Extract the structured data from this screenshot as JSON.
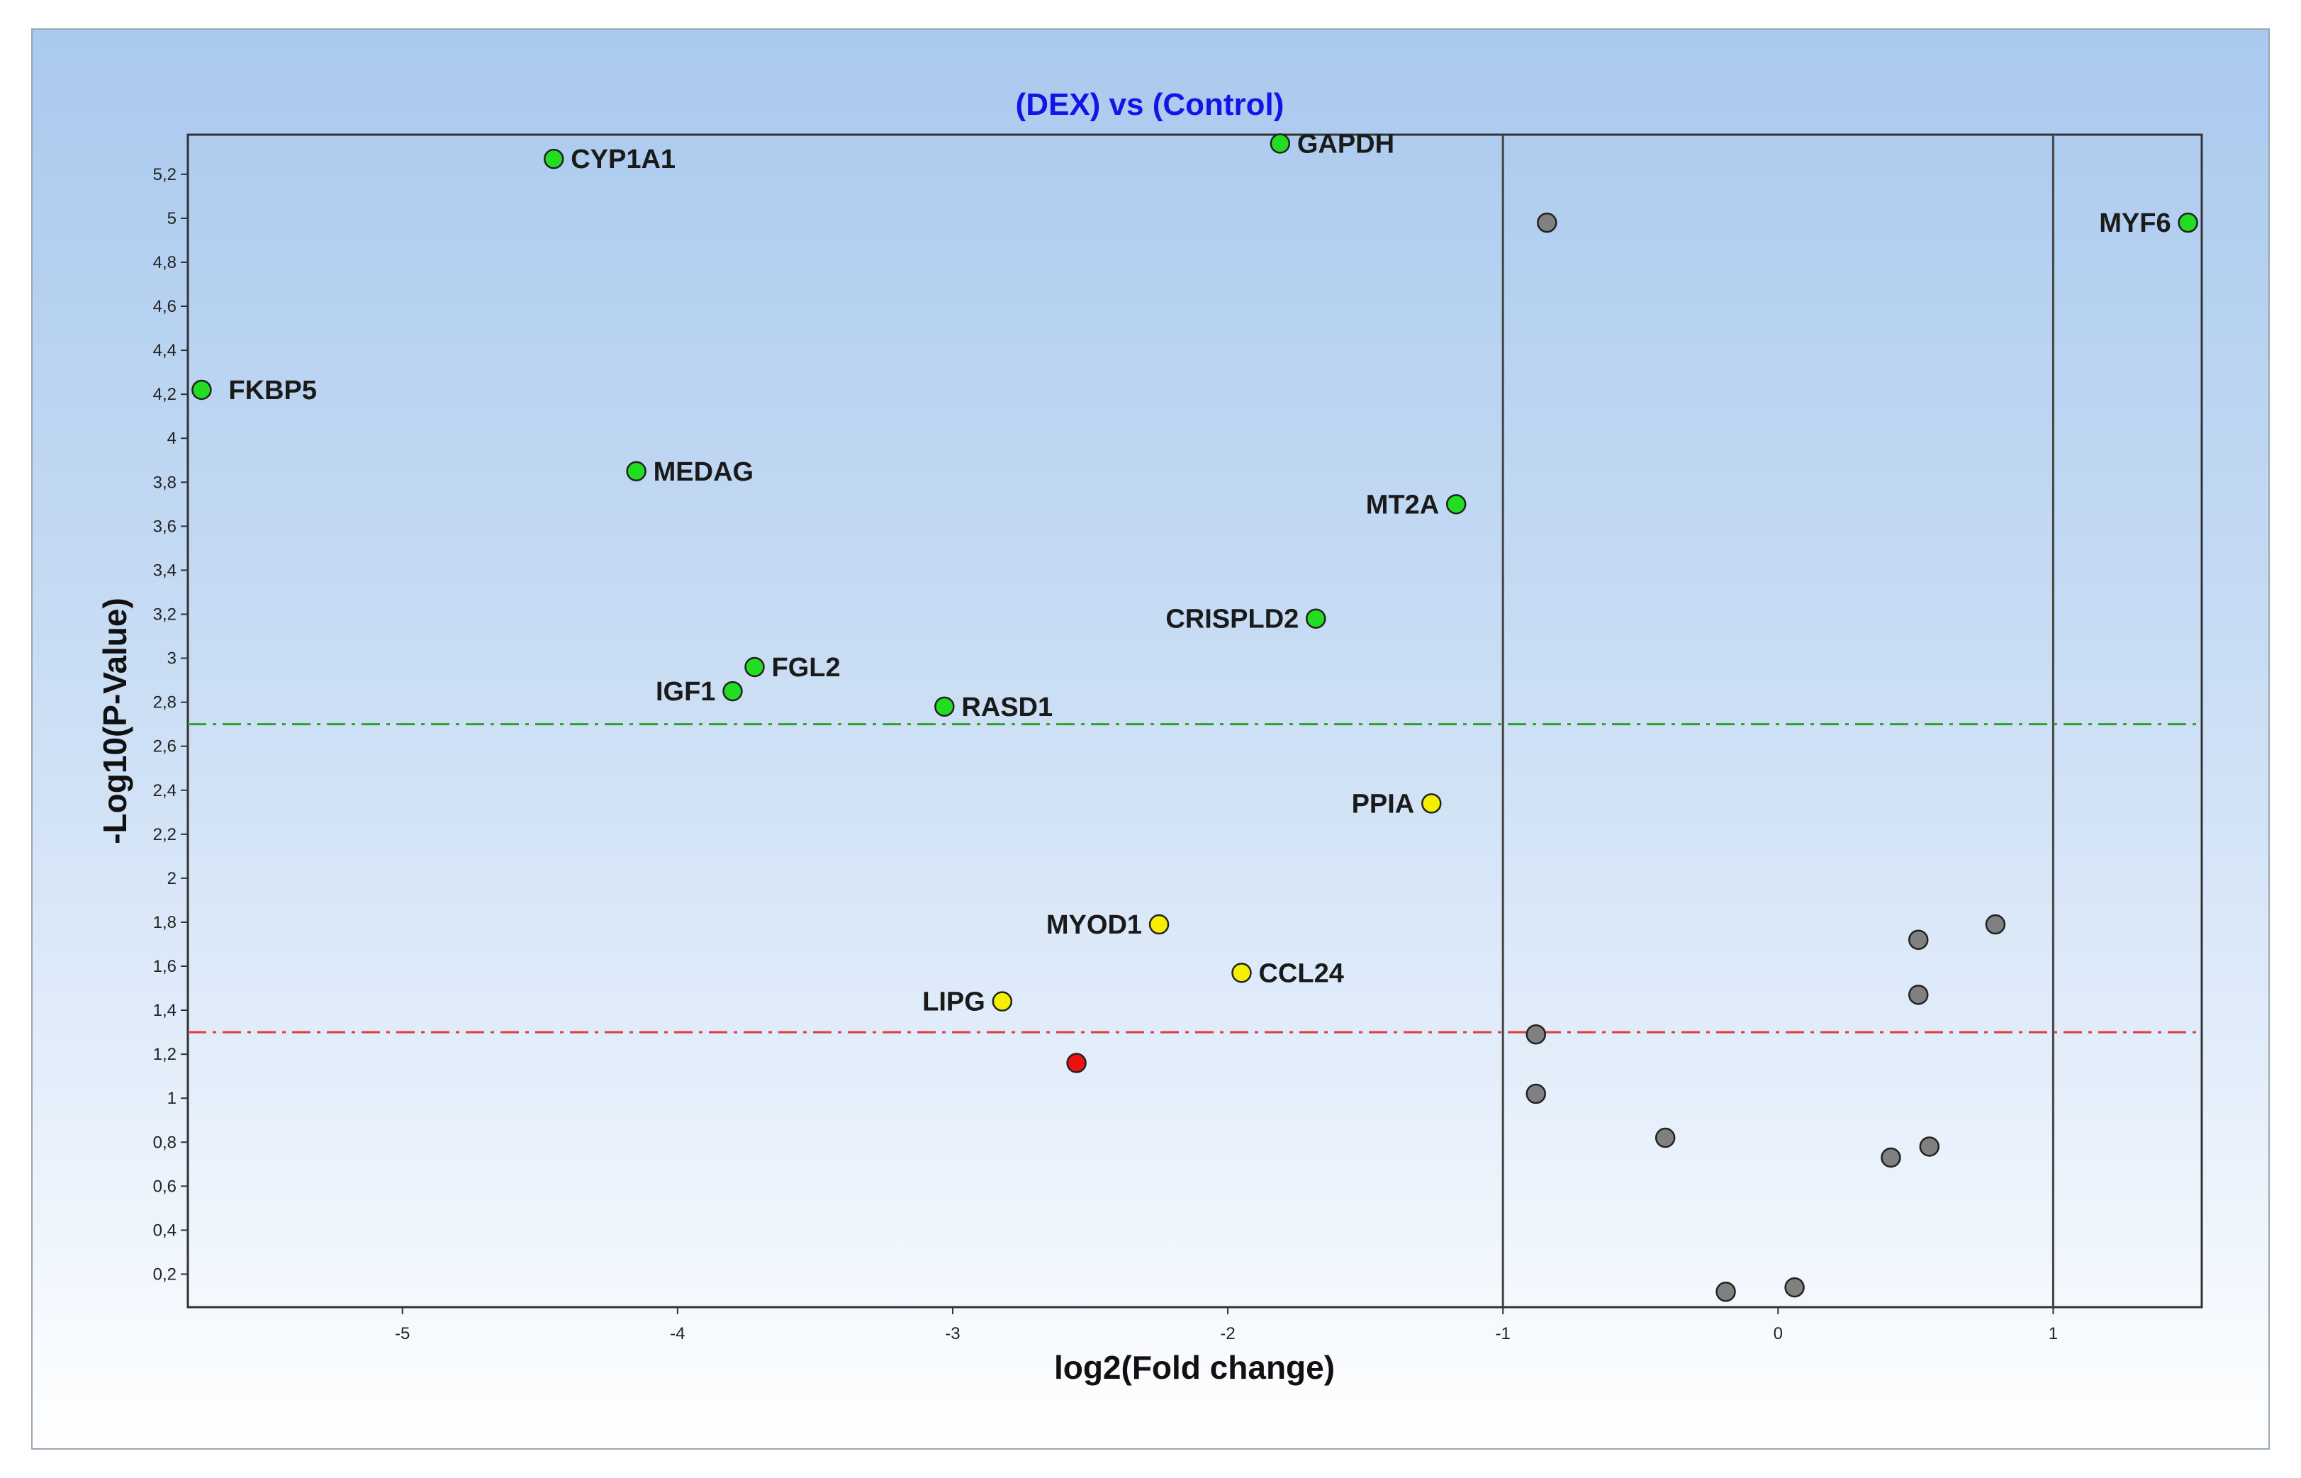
{
  "chart_data": {
    "type": "scatter",
    "title": "(DEX) vs (Control)",
    "xlabel": "log2(Fold change)",
    "ylabel": "-Log10(P-Value)",
    "xlim": [
      -5.78,
      1.54
    ],
    "ylim": [
      0.05,
      5.38
    ],
    "x_ticks": [
      "-5",
      "-4",
      "-3",
      "-2",
      "-1",
      "0",
      "1"
    ],
    "y_ticks": [
      "0,2",
      "0,4",
      "0,6",
      "0,8",
      "1",
      "1,2",
      "1,4",
      "1,6",
      "1,8",
      "2",
      "2,2",
      "2,4",
      "2,6",
      "2,8",
      "3",
      "3,2",
      "3,4",
      "3,6",
      "3,8",
      "4",
      "4,2",
      "4,4",
      "4,6",
      "4,8",
      "5",
      "5,2"
    ],
    "vertical_lines": [
      -1,
      1
    ],
    "horizontal_lines": [
      {
        "y": 2.7,
        "color": "#2ea02e",
        "style": "dash-dot"
      },
      {
        "y": 1.3,
        "color": "#e03c3c",
        "style": "dash-dot"
      }
    ],
    "colors": {
      "green": "#22dd22",
      "yellow": "#f5f000",
      "red": "#ee1111",
      "gray": "#808080"
    },
    "points": [
      {
        "x": -5.73,
        "y": 4.22,
        "color": "green",
        "label": "FKBP5"
      },
      {
        "x": -4.45,
        "y": 5.27,
        "color": "green",
        "label": "CYP1A1"
      },
      {
        "x": -1.81,
        "y": 5.34,
        "color": "green",
        "label": "GAPDH"
      },
      {
        "x": 1.49,
        "y": 4.98,
        "color": "green",
        "label": "MYF6"
      },
      {
        "x": -4.15,
        "y": 3.85,
        "color": "green",
        "label": "MEDAG"
      },
      {
        "x": -1.17,
        "y": 3.7,
        "color": "green",
        "label": "MT2A"
      },
      {
        "x": -1.68,
        "y": 3.18,
        "color": "green",
        "label": "CRISPLD2"
      },
      {
        "x": -3.72,
        "y": 2.96,
        "color": "green",
        "label": "FGL2"
      },
      {
        "x": -3.8,
        "y": 2.85,
        "color": "green",
        "label": "IGF1"
      },
      {
        "x": -3.03,
        "y": 2.78,
        "color": "green",
        "label": "RASD1"
      },
      {
        "x": -1.26,
        "y": 2.34,
        "color": "yellow",
        "label": "PPIA"
      },
      {
        "x": -2.25,
        "y": 1.79,
        "color": "yellow",
        "label": "MYOD1"
      },
      {
        "x": -1.95,
        "y": 1.57,
        "color": "yellow",
        "label": "CCL24"
      },
      {
        "x": -2.82,
        "y": 1.44,
        "color": "yellow",
        "label": "LIPG"
      },
      {
        "x": -2.55,
        "y": 1.16,
        "color": "red",
        "label": ""
      },
      {
        "x": -0.84,
        "y": 4.98,
        "color": "gray",
        "label": ""
      },
      {
        "x": 0.79,
        "y": 1.79,
        "color": "gray",
        "label": ""
      },
      {
        "x": 0.51,
        "y": 1.72,
        "color": "gray",
        "label": ""
      },
      {
        "x": 0.51,
        "y": 1.47,
        "color": "gray",
        "label": ""
      },
      {
        "x": -0.88,
        "y": 1.29,
        "color": "gray",
        "label": ""
      },
      {
        "x": -0.88,
        "y": 1.02,
        "color": "gray",
        "label": ""
      },
      {
        "x": -0.41,
        "y": 0.82,
        "color": "gray",
        "label": ""
      },
      {
        "x": 0.55,
        "y": 0.78,
        "color": "gray",
        "label": ""
      },
      {
        "x": 0.41,
        "y": 0.73,
        "color": "gray",
        "label": ""
      },
      {
        "x": -0.19,
        "y": 0.12,
        "color": "gray",
        "label": ""
      },
      {
        "x": 0.06,
        "y": 0.14,
        "color": "gray",
        "label": ""
      }
    ]
  }
}
